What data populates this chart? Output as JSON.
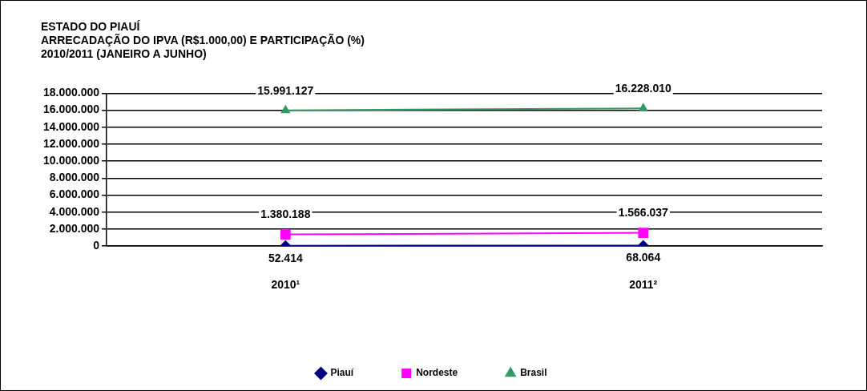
{
  "chart_data": {
    "type": "line",
    "title": "ESTADO DO PIAUÍ",
    "subtitle": "ARRECADAÇÃO DO IPVA (R$1.000,00) E PARTICIPAÇÃO (%)\n2010/2011 (JANEIRO A JUNHO)",
    "categories": [
      "2010¹",
      "2011²"
    ],
    "series": [
      {
        "name": "Piauí",
        "color": "#000080",
        "marker": "diamond",
        "values": [
          52414,
          68064
        ],
        "value_labels": [
          "52.414",
          "68.064"
        ]
      },
      {
        "name": "Nordeste",
        "color": "#ff00ff",
        "marker": "square",
        "values": [
          1380188,
          1566037
        ],
        "value_labels": [
          "1.380.188",
          "1.566.037"
        ]
      },
      {
        "name": "Brasil",
        "color": "#339966",
        "marker": "triangle",
        "values": [
          15991127,
          16228010
        ],
        "value_labels": [
          "15.991.127",
          "16.228.010"
        ]
      }
    ],
    "ylim": [
      0,
      18000000
    ],
    "yticks": [
      {
        "value": 0,
        "label": "0"
      },
      {
        "value": 2000000,
        "label": "2.000.000"
      },
      {
        "value": 4000000,
        "label": "4.000.000"
      },
      {
        "value": 6000000,
        "label": "6.000.000"
      },
      {
        "value": 8000000,
        "label": "8.000.000"
      },
      {
        "value": 10000000,
        "label": "10.000.000"
      },
      {
        "value": 12000000,
        "label": "12.000.000"
      },
      {
        "value": 14000000,
        "label": "14.000.000"
      },
      {
        "value": 16000000,
        "label": "16.000.000"
      },
      {
        "value": 18000000,
        "label": "18.000.000"
      }
    ],
    "grid": "y",
    "legend": "bottom",
    "line_style": "solid"
  }
}
